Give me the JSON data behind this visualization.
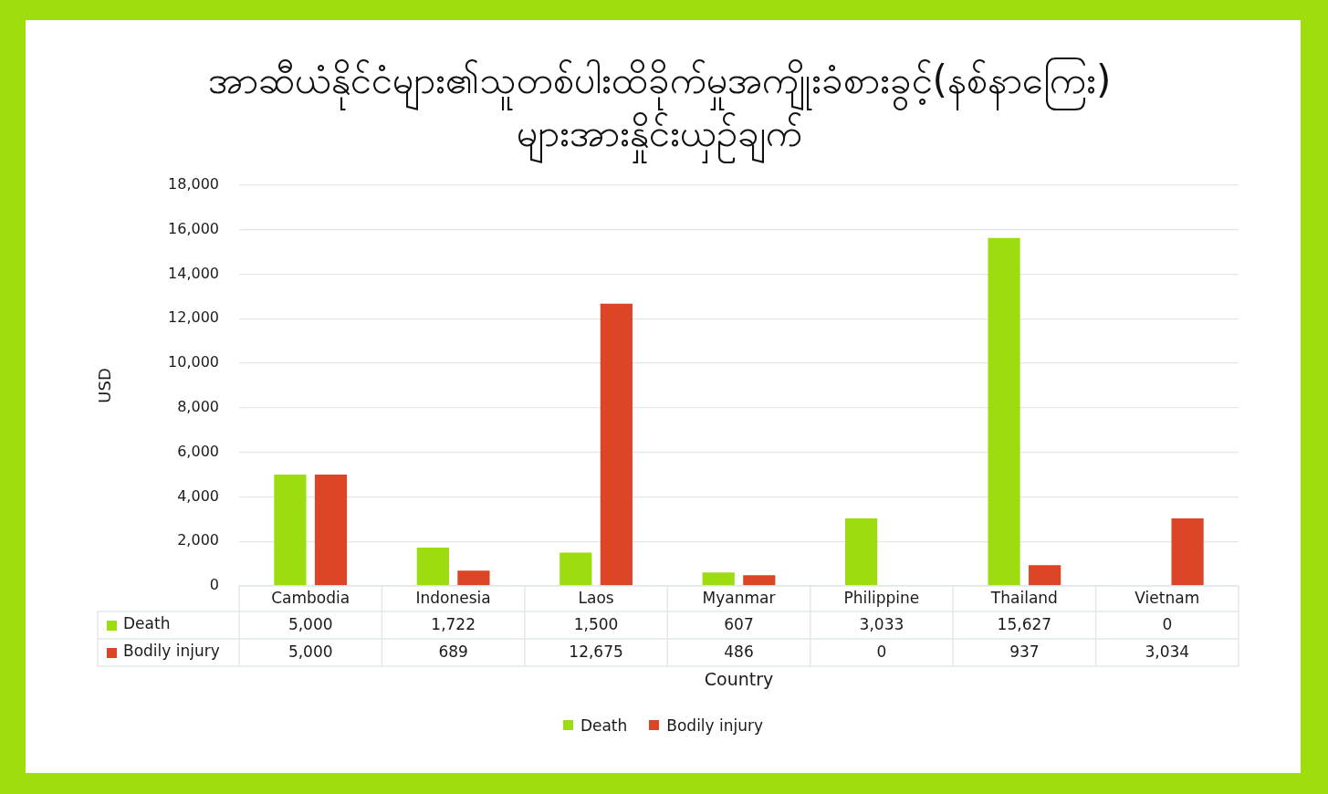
{
  "chart_data": {
    "type": "bar",
    "title": "အာဆီယံနိုင်ငံများ၏သူတစ်ပါးထိခိုက်မှုအကျိုးခံစားခွင့်(နစ်နာကြေး)များအားနှိုင်းယှဉ်ချက်",
    "xlabel": "Country",
    "ylabel": "USD",
    "categories": [
      "Cambodia",
      "Indonesia",
      "Laos",
      "Myanmar",
      "Philippine",
      "Thailand",
      "Vietnam"
    ],
    "series": [
      {
        "name": "Death",
        "color": "#9ddc0e",
        "values": [
          5000,
          1722,
          1500,
          607,
          3033,
          15627,
          0
        ],
        "value_labels": [
          "5,000",
          "1,722",
          "1,500",
          "607",
          "3,033",
          "15,627",
          "0"
        ]
      },
      {
        "name": "Bodily injury",
        "color": "#dc4626",
        "values": [
          5000,
          689,
          12675,
          486,
          0,
          937,
          3034
        ],
        "value_labels": [
          "5,000",
          "689",
          "12,675",
          "486",
          "0",
          "937",
          "3,034"
        ]
      }
    ],
    "ylim": [
      0,
      18000
    ],
    "yticks": [
      0,
      {
        "value": 2000,
        "label": "2,000"
      },
      {
        "value": 4000,
        "label": "4,000"
      },
      {
        "value": 6000,
        "label": "6,000"
      },
      {
        "value": 8000,
        "label": "8,000"
      },
      {
        "value": 10000,
        "label": "10,000"
      },
      {
        "value": 12000,
        "label": "12,000"
      },
      {
        "value": 14000,
        "label": "14,000"
      },
      {
        "value": 16000,
        "label": "16,000"
      },
      {
        "value": 18000,
        "label": "18,000"
      }
    ],
    "grid": "y",
    "legend": "bottom"
  }
}
